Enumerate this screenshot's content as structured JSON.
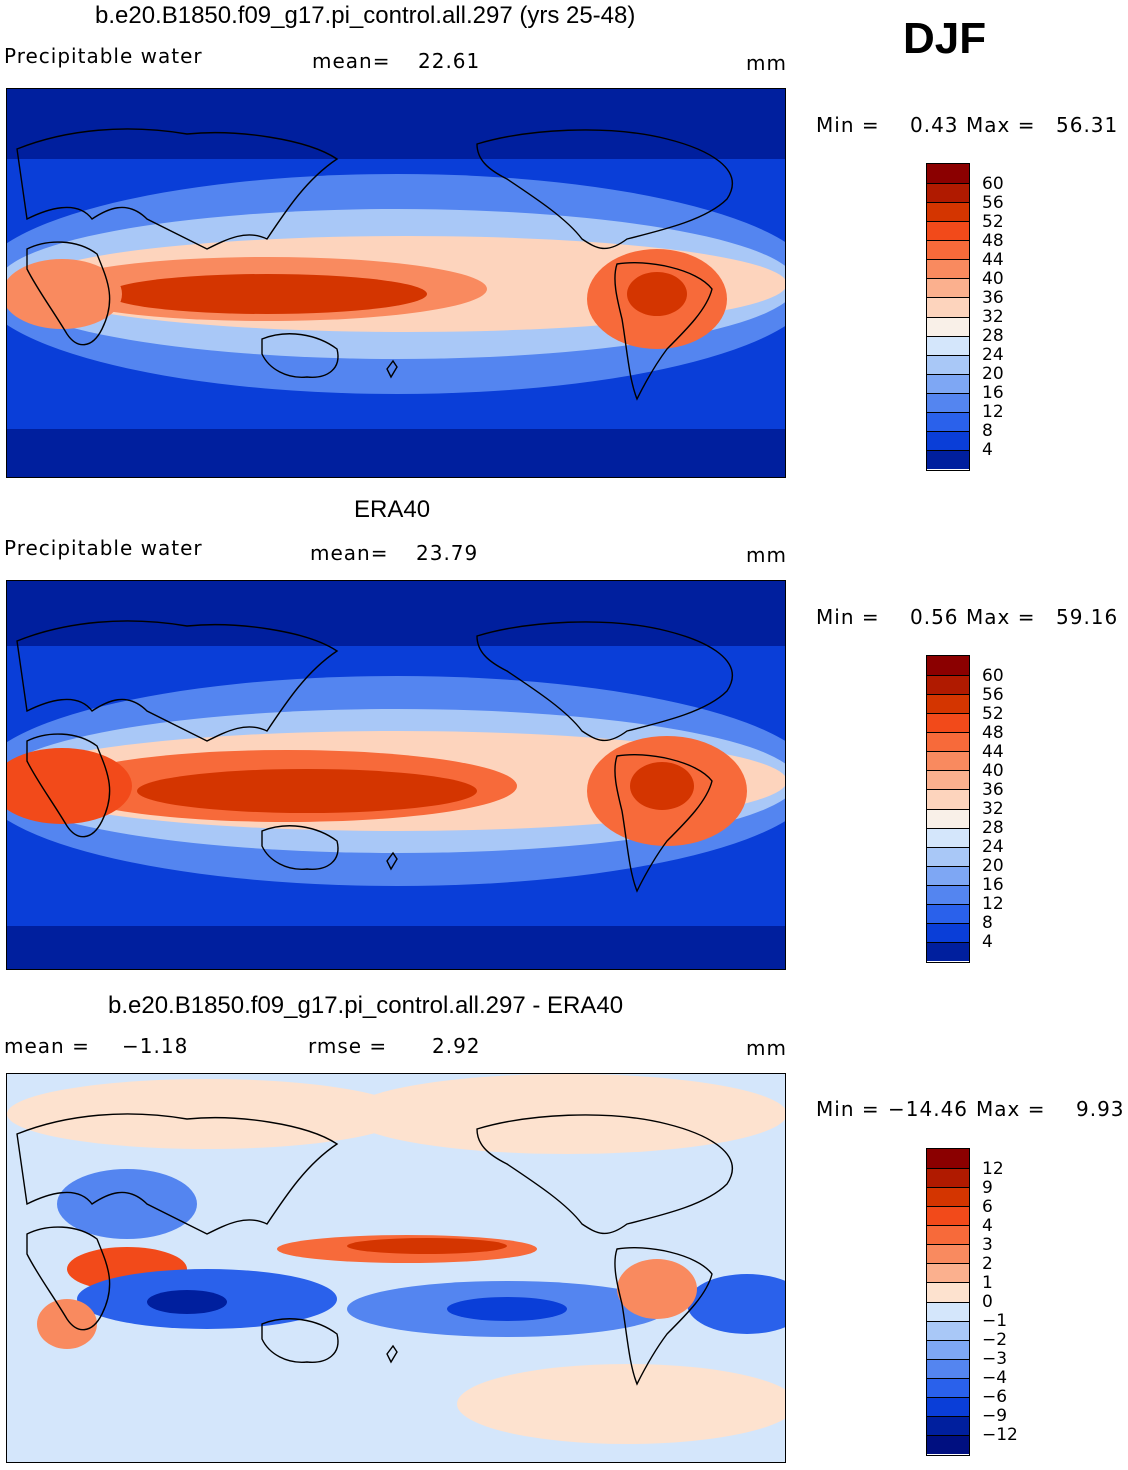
{
  "season": "DJF",
  "panels": [
    {
      "title": "b.e20.B1850.f09_g17.pi_control.all.297 (yrs 25-48)",
      "variable": "Precipitable water",
      "stat1_label": "mean=",
      "stat1_value": "22.61",
      "units": "mm",
      "min_label": "Min  =",
      "min_value": "0.43",
      "max_label": "Max  =",
      "max_value": "56.31",
      "map_type": "field",
      "colorbar": {
        "levels": [
          "60",
          "56",
          "52",
          "48",
          "44",
          "40",
          "36",
          "32",
          "28",
          "24",
          "20",
          "16",
          "12",
          "8",
          "4"
        ],
        "colors": [
          "#8b0000",
          "#b01a00",
          "#d43500",
          "#f24a1a",
          "#f76a3a",
          "#f98a5f",
          "#fbb08e",
          "#fdd4bd",
          "#f9f0e8",
          "#d4e6fb",
          "#a9c8f7",
          "#7ea7f4",
          "#5485f0",
          "#2a61eb",
          "#0a3ed8",
          "#001f9e"
        ]
      }
    },
    {
      "title": "ERA40",
      "variable": "Precipitable water",
      "stat1_label": "mean=",
      "stat1_value": "23.79",
      "units": "mm",
      "min_label": "Min  =",
      "min_value": "0.56",
      "max_label": "Max  =",
      "max_value": "59.16",
      "map_type": "field",
      "colorbar": {
        "levels": [
          "60",
          "56",
          "52",
          "48",
          "44",
          "40",
          "36",
          "32",
          "28",
          "24",
          "20",
          "16",
          "12",
          "8",
          "4"
        ],
        "colors": [
          "#8b0000",
          "#b01a00",
          "#d43500",
          "#f24a1a",
          "#f76a3a",
          "#f98a5f",
          "#fbb08e",
          "#fdd4bd",
          "#f9f0e8",
          "#d4e6fb",
          "#a9c8f7",
          "#7ea7f4",
          "#5485f0",
          "#2a61eb",
          "#0a3ed8",
          "#001f9e"
        ]
      }
    },
    {
      "title": "b.e20.B1850.f09_g17.pi_control.all.297 - ERA40",
      "stat1_label": "mean  =",
      "stat1_value": "−1.18",
      "stat2_label": "rmse  =",
      "stat2_value": "2.92",
      "units": "mm",
      "min_label": "Min  =",
      "min_value": "−14.46",
      "max_label": "Max  =",
      "max_value": "9.93",
      "map_type": "diff",
      "colorbar": {
        "levels": [
          "12",
          "9",
          "6",
          "4",
          "3",
          "2",
          "1",
          "0",
          "−1",
          "−2",
          "−3",
          "−4",
          "−6",
          "−9",
          "−12"
        ],
        "colors": [
          "#8b0000",
          "#b01a00",
          "#d43500",
          "#f24a1a",
          "#f76a3a",
          "#f98a5f",
          "#fbb08e",
          "#fde2cf",
          "#d4e6fb",
          "#a9c8f7",
          "#7ea7f4",
          "#5485f0",
          "#2a61eb",
          "#0a3ed8",
          "#001f9e",
          "#000f80"
        ]
      }
    }
  ]
}
